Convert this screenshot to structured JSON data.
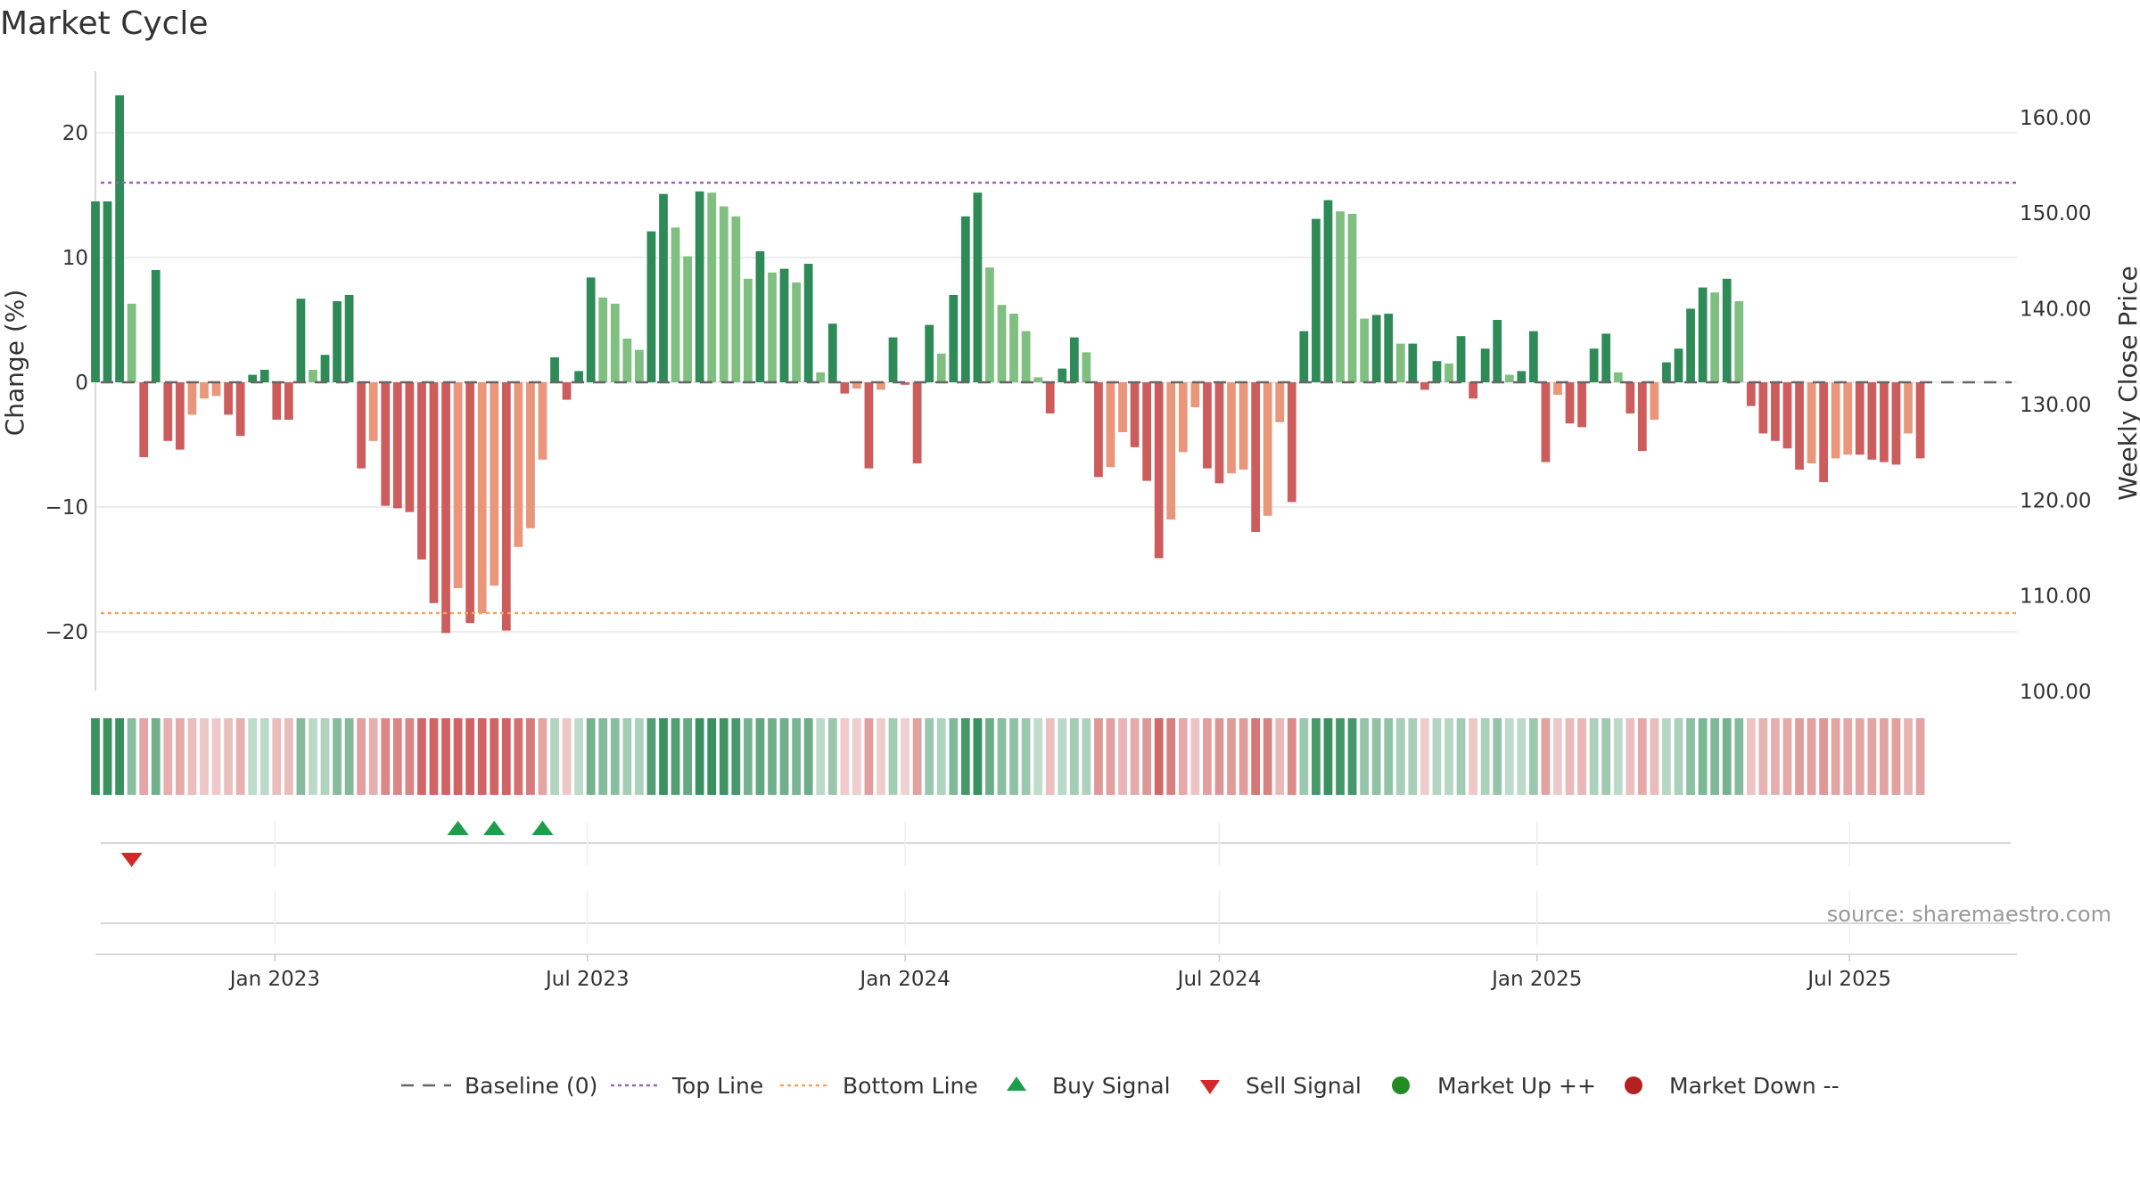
{
  "chart_data": {
    "type": "bar",
    "title": "Market Cycle",
    "ylabel": "Change (%)",
    "y2label": "Weekly Close Price",
    "ylim": [
      -25,
      25
    ],
    "y2lim": [
      100,
      162.5
    ],
    "yticks": [
      20,
      10,
      0,
      -10,
      -20
    ],
    "ytick_labels": [
      "20",
      "10",
      "0",
      "−10",
      "−20"
    ],
    "y2ticks": [
      160,
      150,
      140,
      130,
      120,
      110,
      100
    ],
    "y2tick_labels": [
      "160.00",
      "150.00",
      "140.00",
      "130.00",
      "120.00",
      "110.00",
      "100.00"
    ],
    "x_start": "2022-09-19",
    "x_end": "2025-10-06",
    "x_tick_dates": [
      "2023-01-01",
      "2023-07-01",
      "2024-01-01",
      "2024-07-01",
      "2025-01-01",
      "2025-07-01"
    ],
    "x_tick_labels": [
      "Jan 2023",
      "Jul 2023",
      "Jan 2024",
      "Jul 2024",
      "Jan 2025",
      "Jul 2025"
    ],
    "top_line": 16,
    "bottom_line": -18.5,
    "grid": true,
    "legend_position": "bottom",
    "bar_start_date": "2022-09-19",
    "bar_interval_days": 7,
    "values": [
      14.5,
      14.5,
      23.0,
      6.3,
      -6.0,
      9.0,
      -4.7,
      -5.4,
      -2.6,
      -1.3,
      -1.1,
      -2.6,
      -4.3,
      0.6,
      1.0,
      -3.0,
      -3.0,
      6.7,
      1.0,
      2.2,
      6.5,
      7.0,
      -6.9,
      -4.7,
      -9.9,
      -10.1,
      -10.4,
      -14.2,
      -17.7,
      -20.1,
      -16.5,
      -19.3,
      -18.5,
      -16.3,
      -19.9,
      -13.2,
      -11.7,
      -6.2,
      2.0,
      -1.4,
      0.9,
      8.4,
      6.8,
      6.3,
      3.5,
      2.6,
      12.1,
      15.1,
      12.4,
      10.1,
      15.3,
      15.2,
      14.1,
      13.3,
      8.3,
      10.5,
      8.8,
      9.1,
      8.0,
      9.5,
      0.8,
      4.7,
      -0.9,
      -0.5,
      -6.9,
      -0.6,
      3.6,
      -0.2,
      -6.5,
      4.6,
      2.3,
      7.0,
      13.3,
      15.2,
      9.2,
      6.2,
      5.5,
      4.1,
      0.4,
      -2.5,
      1.1,
      3.6,
      2.4,
      -7.6,
      -6.8,
      -4.0,
      -5.2,
      -7.9,
      -14.1,
      -11.0,
      -5.6,
      -2.0,
      -6.9,
      -8.1,
      -7.3,
      -7.0,
      -12.0,
      -10.7,
      -3.2,
      -9.6,
      4.1,
      13.1,
      14.6,
      13.7,
      13.5,
      5.1,
      5.4,
      5.5,
      3.1,
      3.1,
      -0.6,
      1.7,
      1.5,
      3.7,
      -1.3,
      2.7,
      5.0,
      0.6,
      0.9,
      4.1,
      -6.4,
      -1.0,
      -3.3,
      -3.6,
      2.7,
      3.9,
      0.8,
      -2.5,
      -5.5,
      -3.0,
      1.6,
      2.7,
      5.9,
      7.6,
      7.2,
      8.3,
      6.5,
      -1.9,
      -4.1,
      -4.7,
      -5.3,
      -7.0,
      -6.5,
      -8.0,
      -6.1,
      -5.8,
      -5.8,
      -6.2,
      -6.4,
      -6.6,
      -4.1,
      -6.1
    ],
    "price_axis_shown": true,
    "buy_signal_dates": [
      "2023-04-17",
      "2023-05-08",
      "2023-06-05"
    ],
    "sell_signal_dates": [
      "2022-10-10"
    ],
    "legend": [
      "Baseline (0)",
      "Top Line",
      "Bottom Line",
      "Buy Signal",
      "Sell Signal",
      "Market Up ++",
      "Market Down --"
    ],
    "source": "source: sharemaestro.com"
  },
  "colors": {
    "up_strong": "#2e8b57",
    "up_light": "#7fbf7f",
    "down_strong": "#cd5c5c",
    "down_light": "#e9967a",
    "top_line": "#9467bd",
    "bottom_line": "#f4a460",
    "buy": "#1e9e4a",
    "sell": "#d62728",
    "market_up": "#228b22",
    "market_down": "#b22222",
    "baseline": "#666666"
  }
}
